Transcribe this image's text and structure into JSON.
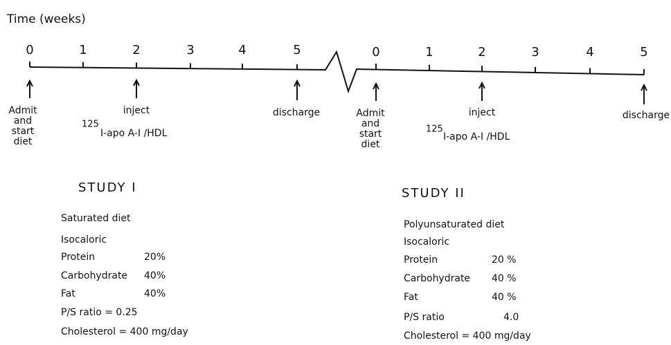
{
  "axis_label": "Time (weeks)",
  "timelines": [
    {
      "ticks": [
        "0",
        "1",
        "2",
        "3",
        "4",
        "5"
      ],
      "admit": [
        "Admit",
        "and",
        "start",
        "diet"
      ],
      "inject": "inject",
      "isotope": "125",
      "tracer": "I-apo A-I /HDL",
      "discharge": "discharge"
    },
    {
      "ticks": [
        "0",
        "1",
        "2",
        "3",
        "4",
        "5"
      ],
      "admit": [
        "Admit",
        "and",
        "start",
        "diet"
      ],
      "inject": "inject",
      "isotope": "125",
      "tracer": "I-apo A-I /HDL",
      "discharge": "discharge"
    }
  ],
  "studies": [
    {
      "title": "STUDY I",
      "diet": "Saturated diet",
      "kind": "Isocaloric",
      "rows": [
        [
          "Protein",
          "20%"
        ],
        [
          "Carbohydrate",
          "40%"
        ],
        [
          "Fat",
          "40%"
        ]
      ],
      "ps_ratio": [
        "P/S ratio = 0.25"
      ],
      "cholesterol": "Cholesterol = 400 mg/day"
    },
    {
      "title": "STUDY II",
      "diet": "Polyunsaturated diet",
      "kind": "Isocaloric",
      "rows": [
        [
          "Protein",
          "20 %"
        ],
        [
          "Carbohydrate",
          "40 %"
        ],
        [
          "Fat",
          "40 %"
        ]
      ],
      "ps_ratio": [
        "P/S ratio",
        "4.0"
      ],
      "cholesterol": "Cholesterol = 400 mg/day"
    }
  ]
}
